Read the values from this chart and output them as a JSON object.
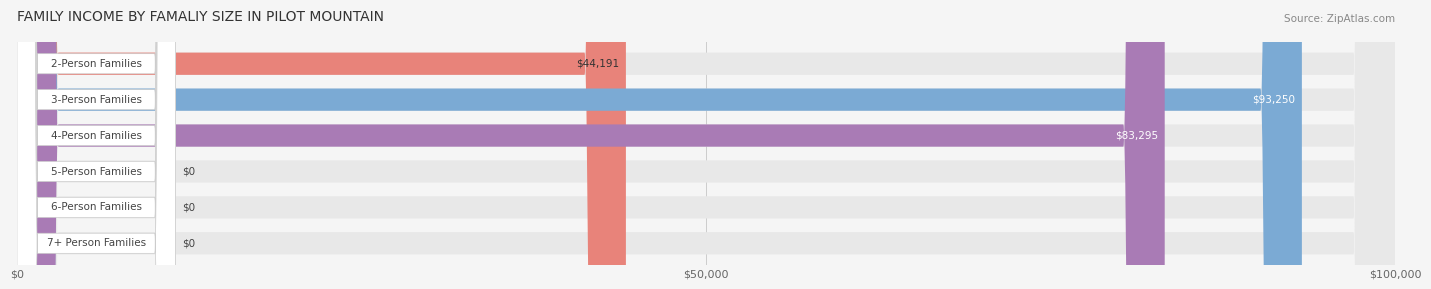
{
  "title": "FAMILY INCOME BY FAMALIY SIZE IN PILOT MOUNTAIN",
  "source": "Source: ZipAtlas.com",
  "categories": [
    "2-Person Families",
    "3-Person Families",
    "4-Person Families",
    "5-Person Families",
    "6-Person Families",
    "7+ Person Families"
  ],
  "values": [
    44191,
    93250,
    83295,
    0,
    0,
    0
  ],
  "bar_colors": [
    "#E8837A",
    "#7BAAD4",
    "#A97BB5",
    "#5CC8B8",
    "#A8B0D8",
    "#F0A0B0"
  ],
  "label_colors": [
    "#333333",
    "#ffffff",
    "#ffffff",
    "#333333",
    "#333333",
    "#333333"
  ],
  "xlim": [
    0,
    100000
  ],
  "xticks": [
    0,
    50000,
    100000
  ],
  "xtick_labels": [
    "$0",
    "$50,000",
    "$100,000"
  ],
  "background_color": "#f5f5f5",
  "bar_bg_color": "#e8e8e8",
  "value_labels": [
    "$44,191",
    "$93,250",
    "$83,295",
    "$0",
    "$0",
    "$0"
  ],
  "bar_height": 0.62,
  "title_fontsize": 10,
  "label_fontsize": 7.5,
  "value_fontsize": 7.5
}
